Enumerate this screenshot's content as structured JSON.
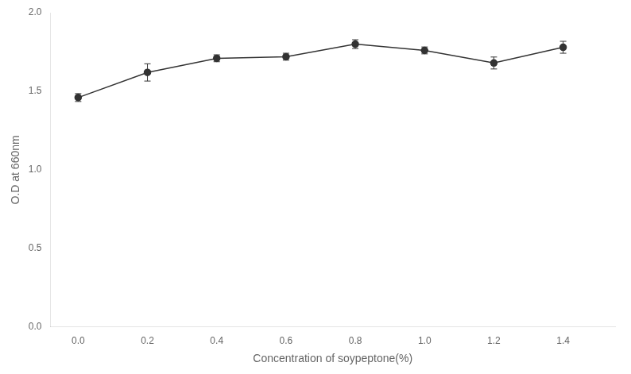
{
  "chart_data": {
    "type": "line",
    "xlabel": "Concentration of soypeptone(%)",
    "ylabel": "O.D at 660nm",
    "x": [
      0.0,
      0.2,
      0.4,
      0.6,
      0.8,
      1.0,
      1.2,
      1.4
    ],
    "values": [
      1.46,
      1.62,
      1.71,
      1.72,
      1.8,
      1.76,
      1.68,
      1.78
    ],
    "yerr": [
      0.025,
      0.055,
      0.022,
      0.022,
      0.028,
      0.022,
      0.038,
      0.038
    ],
    "color": "#333333",
    "marker": "circle",
    "line_style": "solid",
    "xlim": [
      -0.08,
      1.55
    ],
    "ylim": [
      0.0,
      2.0
    ],
    "xticks": [
      {
        "value": 0.0,
        "label": "0.0"
      },
      0.2,
      0.4,
      0.6,
      0.8,
      {
        "value": 1.0,
        "label": "1.0"
      },
      1.2,
      1.4
    ],
    "yticks": [
      {
        "value": 0.0,
        "label": "0.0"
      },
      0.5,
      {
        "value": 1.0,
        "label": "1.0"
      },
      1.5,
      {
        "value": 2.0,
        "label": "2.0"
      }
    ],
    "grid": false
  }
}
